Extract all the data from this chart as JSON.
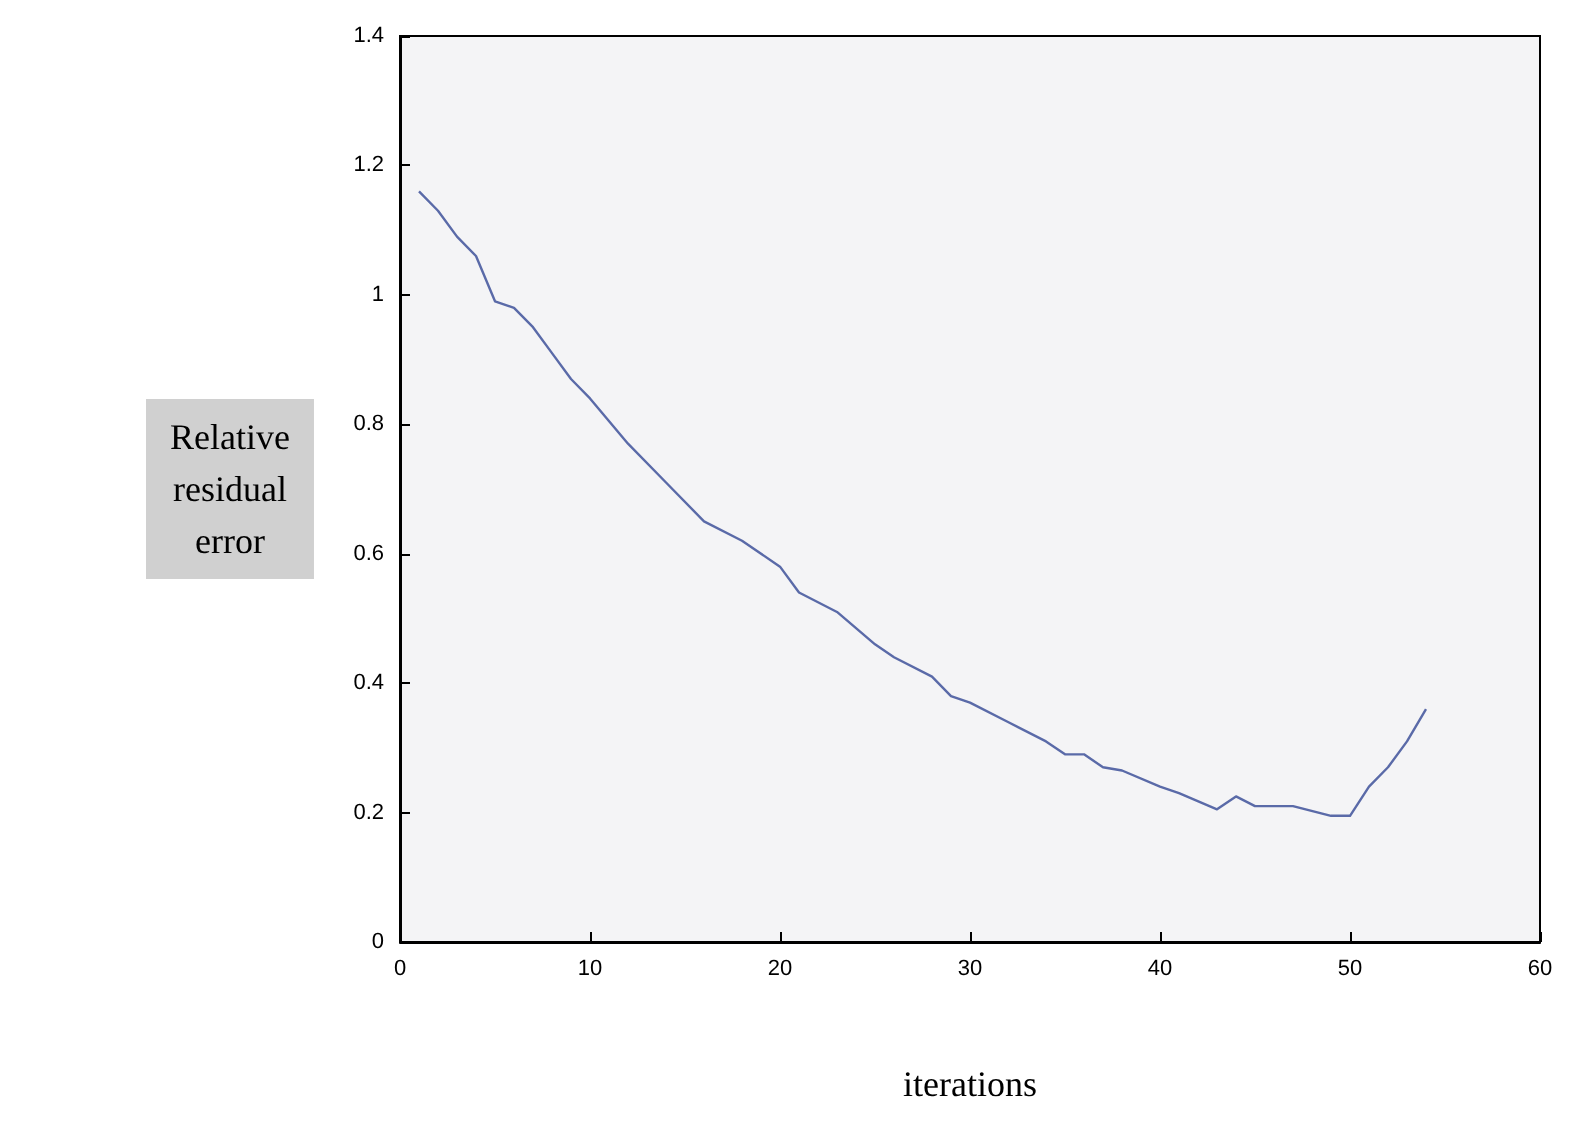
{
  "chart_data": {
    "type": "line",
    "xlabel": "iterations",
    "ylabel": "Relative residual error",
    "x": [
      1,
      2,
      3,
      4,
      5,
      6,
      7,
      8,
      9,
      10,
      12,
      14,
      16,
      18,
      20,
      21,
      23,
      25,
      26,
      28,
      29,
      30,
      32,
      34,
      35,
      36,
      37,
      38,
      40,
      41,
      43,
      44,
      45,
      47,
      49,
      50,
      51,
      52,
      53,
      54
    ],
    "series": [
      {
        "color": "#5a6aa8",
        "values": [
          1.16,
          1.13,
          1.09,
          1.06,
          0.99,
          0.98,
          0.95,
          0.91,
          0.87,
          0.84,
          0.77,
          0.71,
          0.65,
          0.62,
          0.58,
          0.54,
          0.51,
          0.46,
          0.44,
          0.41,
          0.38,
          0.37,
          0.34,
          0.31,
          0.29,
          0.29,
          0.27,
          0.265,
          0.24,
          0.23,
          0.205,
          0.225,
          0.21,
          0.21,
          0.195,
          0.195,
          0.24,
          0.27,
          0.31,
          0.36
        ]
      }
    ],
    "xlim": [
      0,
      60
    ],
    "xticks": [
      0,
      10,
      20,
      30,
      40,
      50,
      60
    ],
    "ylim": [
      0,
      1.4
    ],
    "yticks": [
      0,
      0.2,
      0.4,
      0.6,
      0.8,
      1,
      1.2,
      1.4
    ],
    "grid": false,
    "marker": "none",
    "line_style": "solid"
  }
}
